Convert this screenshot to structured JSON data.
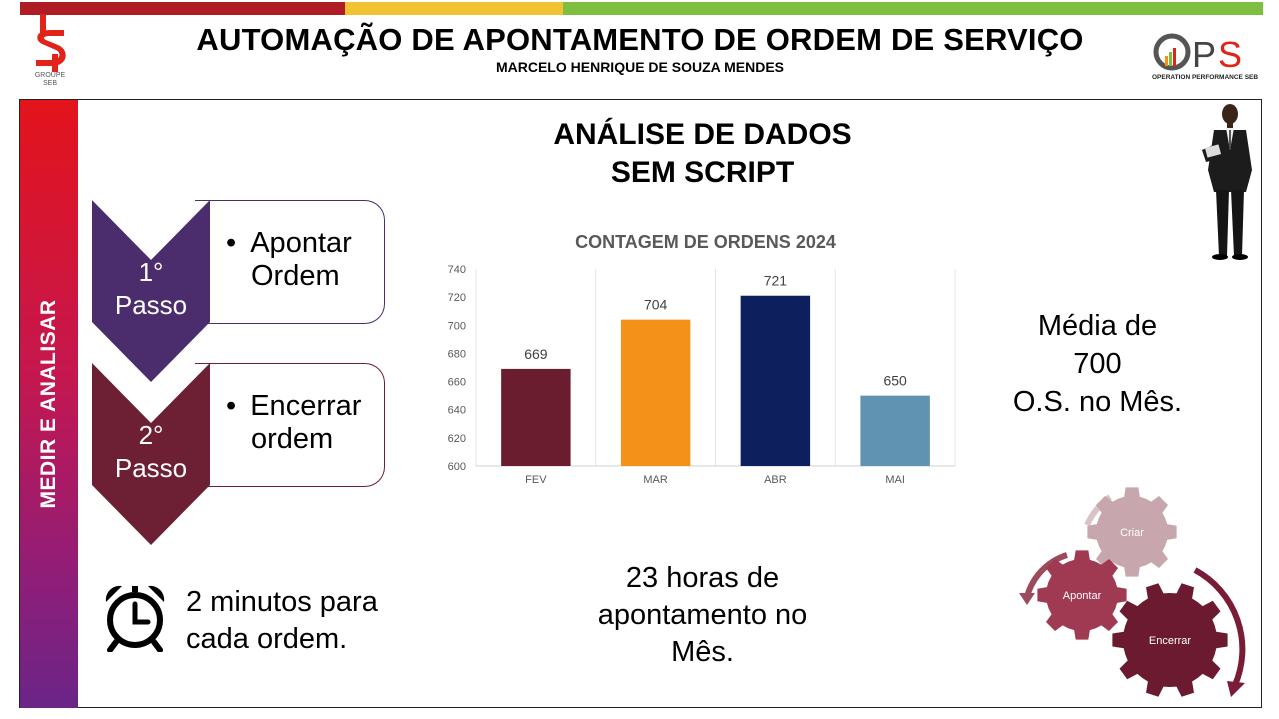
{
  "header": {
    "title": "AUTOMAÇÃO DE APONTAMENTO DE ORDEM DE SERVIÇO",
    "author": "MARCELO HENRIQUE DE SOUZA MENDES",
    "left_logo_text": "GROUPE SEB",
    "right_logo_text": "OPS",
    "right_logo_sub": "OPERATION PERFORMANCE SEB",
    "bar_colors": [
      "#b01c24",
      "#f1c232",
      "#7fbf3f"
    ]
  },
  "sidebar": {
    "label": "MEDIR E ANALISAR"
  },
  "analysis": {
    "line1": "ANÁLISE DE DADOS",
    "line2": "SEM SCRIPT"
  },
  "steps": [
    {
      "num_line1": "1°",
      "num_line2": "Passo",
      "bullet": "•",
      "text_line1": "Apontar",
      "text_line2": "Ordem",
      "color": "#4b2d6e"
    },
    {
      "num_line1": "2°",
      "num_line2": "Passo",
      "bullet": "•",
      "text_line1": "Encerrar",
      "text_line2": "ordem",
      "color": "#6d1f33"
    }
  ],
  "chart_data": {
    "type": "bar",
    "title": "CONTAGEM DE ORDENS 2024",
    "categories": [
      "FEV",
      "MAR",
      "ABR",
      "MAI"
    ],
    "values": [
      669,
      704,
      721,
      650
    ],
    "colors": [
      "#6b1d30",
      "#f39119",
      "#0d1f5c",
      "#5f93b1"
    ],
    "ylim": [
      600,
      740
    ],
    "yticks": [
      600,
      620,
      640,
      660,
      680,
      700,
      720,
      740
    ],
    "grid": "vertical category separators",
    "data_labels": true
  },
  "media": {
    "line1": "Média de",
    "line2": "700",
    "line3": "O.S. no Mês."
  },
  "clock_text": {
    "line1": "2 minutos para",
    "line2": "cada ordem."
  },
  "hours_text": {
    "line1": "23 horas de",
    "line2": "apontamento no",
    "line3": "Mês."
  },
  "gears": {
    "g1": "Criar",
    "g2": "Apontar",
    "g3": "Encerrar"
  }
}
